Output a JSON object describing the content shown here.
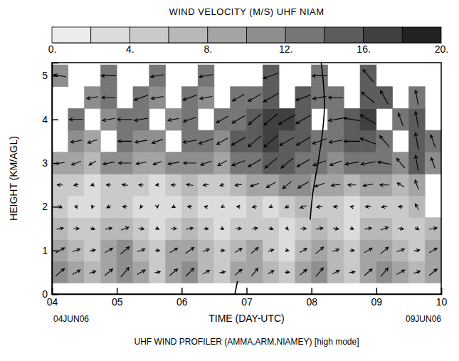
{
  "chart_data": {
    "type": "heatmap",
    "title": "WIND VELOCITY (M/S) UHF NIAM",
    "x_label": "TIME (DAY-UTC)",
    "y_label": "HEIGHT (KM/AGL)",
    "annotations": [
      "04JUN06",
      "09JUN06",
      "UHF WIND PROFILER (AMMA,ARM,NIAMEY) [high mode]"
    ],
    "xlim": [
      4,
      10
    ],
    "xticks": [
      {
        "value": 4,
        "label": "04"
      },
      {
        "value": 5,
        "label": "05"
      },
      {
        "value": 6,
        "label": "06"
      },
      {
        "value": 7,
        "label": "07"
      },
      {
        "value": 8,
        "label": "08"
      },
      {
        "value": 9,
        "label": "09"
      },
      {
        "value": 10,
        "label": "10"
      }
    ],
    "ylim": [
      0,
      5.3
    ],
    "yticks": [
      0,
      1,
      2,
      3,
      4,
      5
    ],
    "time_edges": [
      4,
      4.25,
      4.5,
      4.75,
      5,
      5.25,
      5.5,
      5.75,
      6,
      6.25,
      6.5,
      6.75,
      7,
      7.25,
      7.5,
      7.75,
      8,
      8.25,
      8.5,
      8.75,
      9,
      9.25,
      9.5,
      9.75,
      10
    ],
    "height_edges": [
      0.25,
      0.75,
      1.25,
      1.75,
      2.25,
      2.75,
      3.25,
      3.75,
      4.25,
      4.75,
      5.25
    ],
    "speed": [
      [
        10,
        8,
        6,
        9,
        11,
        8,
        5,
        9,
        10,
        7,
        5,
        8,
        9,
        6,
        4,
        8,
        10,
        7,
        5,
        9,
        10,
        8,
        6,
        9
      ],
      [
        9,
        7,
        5,
        8,
        10,
        7,
        4,
        8,
        9,
        6,
        4,
        7,
        8,
        5,
        3,
        7,
        9,
        6,
        4,
        8,
        9,
        7,
        5,
        8
      ],
      [
        6,
        5,
        4,
        6,
        7,
        5,
        3,
        5,
        6,
        4,
        3,
        5,
        5,
        4,
        3,
        5,
        6,
        5,
        3,
        6,
        7,
        5,
        4,
        7
      ],
      [
        4,
        3,
        3,
        4,
        4,
        3,
        2,
        3,
        4,
        3,
        2,
        3,
        4,
        3,
        4,
        6,
        5,
        4,
        3,
        5,
        5,
        4,
        6,
        null
      ],
      [
        5,
        4,
        3,
        4,
        5,
        4,
        3,
        4,
        6,
        5,
        4,
        6,
        8,
        9,
        10,
        11,
        9,
        8,
        7,
        9,
        8,
        7,
        9,
        null
      ],
      [
        8,
        9,
        7,
        10,
        11,
        9,
        8,
        10,
        11,
        10,
        9,
        12,
        13,
        14,
        14,
        13,
        12,
        11,
        12,
        13,
        12,
        11,
        14,
        10
      ],
      [
        null,
        10,
        9,
        null,
        12,
        11,
        10,
        null,
        12,
        13,
        11,
        14,
        15,
        16,
        15,
        14,
        13,
        12,
        14,
        15,
        13,
        null,
        15,
        12
      ],
      [
        null,
        12,
        null,
        11,
        13,
        12,
        null,
        10,
        12,
        null,
        12,
        13,
        14,
        16,
        17,
        15,
        null,
        13,
        15,
        16,
        null,
        12,
        14,
        null
      ],
      [
        null,
        null,
        10,
        12,
        null,
        13,
        11,
        null,
        13,
        11,
        null,
        12,
        13,
        15,
        null,
        14,
        12,
        13,
        null,
        15,
        14,
        null,
        13,
        null
      ],
      [
        11,
        null,
        null,
        13,
        null,
        null,
        12,
        null,
        null,
        12,
        null,
        null,
        null,
        14,
        null,
        null,
        13,
        null,
        null,
        14,
        null,
        null,
        null,
        null
      ]
    ],
    "direction": [
      [
        230,
        240,
        250,
        230,
        220,
        240,
        260,
        230,
        225,
        240,
        260,
        230,
        220,
        240,
        270,
        230,
        220,
        240,
        260,
        230,
        220,
        240,
        250,
        230
      ],
      [
        240,
        250,
        260,
        240,
        230,
        250,
        270,
        240,
        235,
        250,
        270,
        240,
        230,
        250,
        280,
        240,
        230,
        250,
        270,
        240,
        230,
        250,
        260,
        240
      ],
      [
        260,
        270,
        290,
        260,
        250,
        280,
        300,
        270,
        260,
        280,
        300,
        270,
        260,
        290,
        320,
        270,
        260,
        280,
        300,
        260,
        250,
        280,
        300,
        260
      ],
      [
        300,
        330,
        20,
        60,
        90,
        30,
        350,
        60,
        90,
        100,
        60,
        90,
        80,
        70,
        60,
        70,
        80,
        90,
        100,
        90,
        80,
        100,
        150,
        null
      ],
      [
        90,
        80,
        70,
        90,
        100,
        90,
        80,
        90,
        100,
        80,
        70,
        80,
        70,
        60,
        50,
        60,
        70,
        80,
        90,
        80,
        90,
        120,
        160,
        null
      ],
      [
        80,
        70,
        60,
        80,
        90,
        80,
        70,
        80,
        90,
        70,
        60,
        70,
        60,
        50,
        50,
        60,
        70,
        70,
        80,
        80,
        100,
        140,
        170,
        160
      ],
      [
        null,
        80,
        70,
        null,
        90,
        80,
        70,
        null,
        80,
        70,
        60,
        60,
        50,
        50,
        60,
        60,
        70,
        80,
        90,
        110,
        140,
        null,
        170,
        160
      ],
      [
        null,
        90,
        null,
        80,
        90,
        80,
        null,
        80,
        70,
        null,
        60,
        60,
        50,
        50,
        60,
        60,
        null,
        80,
        100,
        120,
        null,
        160,
        170,
        null
      ],
      [
        null,
        null,
        80,
        90,
        null,
        70,
        80,
        null,
        70,
        80,
        null,
        60,
        60,
        60,
        null,
        70,
        80,
        90,
        null,
        130,
        150,
        null,
        170,
        null
      ],
      [
        100,
        null,
        null,
        90,
        null,
        null,
        80,
        null,
        null,
        80,
        null,
        null,
        null,
        70,
        null,
        null,
        90,
        null,
        null,
        140,
        null,
        null,
        null,
        null
      ]
    ],
    "colorbar": {
      "range": [
        0,
        20
      ],
      "ticks": [
        {
          "value": 0,
          "label": "0."
        },
        {
          "value": 4,
          "label": "4."
        },
        {
          "value": 8,
          "label": "8."
        },
        {
          "value": 12,
          "label": "12."
        },
        {
          "value": 16,
          "label": "16."
        },
        {
          "value": 20,
          "label": "20."
        }
      ],
      "colors": [
        "#ececec",
        "#dcdcdc",
        "#cacaca",
        "#b8b8b8",
        "#a4a4a4",
        "#8e8e8e",
        "#767676",
        "#5c5c5c",
        "#404040",
        "#222222"
      ]
    },
    "lines": [
      {
        "x": [
          7.98,
          8.02,
          8.1,
          8.17,
          8.2,
          8.18,
          8.15
        ],
        "y": [
          1.7,
          2.3,
          3.0,
          3.7,
          4.3,
          4.9,
          5.3
        ],
        "color": "#000000"
      },
      {
        "x": [
          6.82,
          6.86
        ],
        "y": [
          0,
          0.3
        ],
        "color": "#000000"
      }
    ]
  }
}
